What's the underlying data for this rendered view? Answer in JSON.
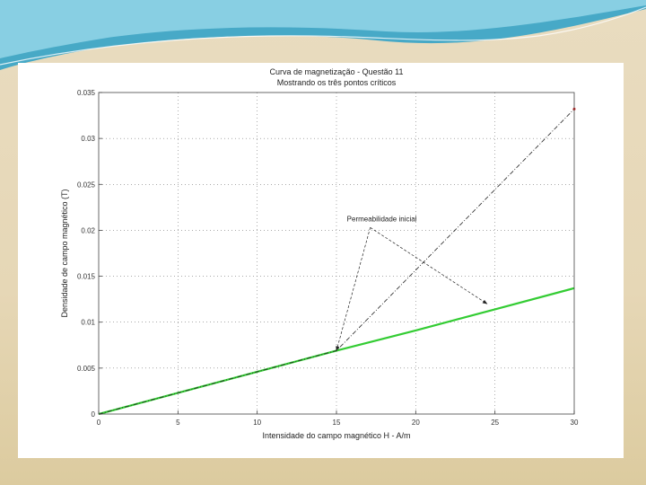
{
  "colors": {
    "background": "#e6d7b6",
    "wave_dark": "#2aa0c8",
    "wave_light": "#8fd3e6",
    "curve": "#33cc33",
    "ideal_line": "#222222",
    "marker": "#cc2222"
  },
  "chart_data": {
    "type": "line",
    "title": "Curva de magnetização - Questão 11",
    "subtitle": "Mostrando os três pontos críticos",
    "xlabel": "Intensidade do campo magnético H - A/m",
    "ylabel": "Densidade de campo magnético (T)",
    "xlim": [
      0,
      30
    ],
    "ylim": [
      0,
      0.035
    ],
    "x_ticks": [
      0,
      5,
      10,
      15,
      20,
      25,
      30
    ],
    "y_ticks": [
      0,
      0.005,
      0.01,
      0.015,
      0.02,
      0.025,
      0.03,
      0.035
    ],
    "x_tick_labels": [
      "0",
      "5",
      "10",
      "15",
      "20",
      "25",
      "30"
    ],
    "y_tick_labels": [
      "0",
      "0.005",
      "0.01",
      "0.015",
      "0.02",
      "0.025",
      "0.03",
      "0.035"
    ],
    "grid": true,
    "series": [
      {
        "style": "green-solid",
        "x": [
          0,
          5,
          10,
          15,
          20,
          25,
          30
        ],
        "y": [
          0,
          0.0023,
          0.0046,
          0.0069,
          0.0091,
          0.0114,
          0.0137
        ]
      },
      {
        "style": "black-dashdot",
        "x": [
          0,
          15,
          30
        ],
        "y": [
          0,
          0.0069,
          0.0332
        ]
      }
    ],
    "annotation": {
      "text": "Permeabilidade inicial",
      "text_at": [
        16,
        0.0205
      ],
      "arrows_to": [
        [
          15,
          0.0069
        ],
        [
          24.5,
          0.012
        ]
      ]
    }
  }
}
